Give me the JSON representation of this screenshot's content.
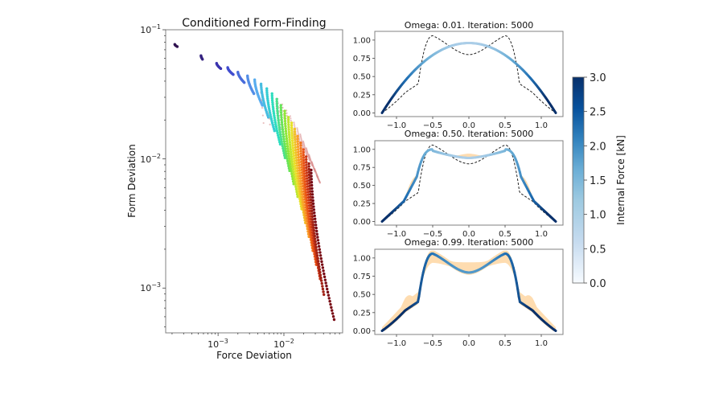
{
  "chart_data": [
    {
      "type": "scatter",
      "title": "Conditioned Form-Finding",
      "xlabel": "Force Deviation",
      "ylabel": "Form Deviation",
      "xscale": "log",
      "yscale": "log",
      "xlim": [
        0.00016,
        0.078
      ],
      "ylim": [
        0.00045,
        0.1
      ],
      "x_ticks": [
        {
          "value": 0.001,
          "base": "10",
          "exp": "−3"
        },
        {
          "value": 0.01,
          "base": "10",
          "exp": "−2"
        }
      ],
      "y_ticks": [
        {
          "value": 0.1,
          "base": "10",
          "exp": "−1"
        },
        {
          "value": 0.01,
          "base": "10",
          "exp": "−2"
        },
        {
          "value": 0.001,
          "base": "10",
          "exp": "−3"
        }
      ],
      "colormap": "jet-like (purple → blue → cyan → green → yellow → orange → dark red)",
      "strands": [
        {
          "start": [
            0.00022,
            0.077
          ],
          "end": [
            0.00024,
            0.074
          ]
        },
        {
          "start": [
            0.00055,
            0.063
          ],
          "end": [
            0.00058,
            0.059
          ]
        },
        {
          "start": [
            0.00095,
            0.055
          ],
          "end": [
            0.0011,
            0.05
          ]
        },
        {
          "start": [
            0.0014,
            0.051
          ],
          "end": [
            0.0017,
            0.045
          ]
        },
        {
          "start": [
            0.002,
            0.047
          ],
          "end": [
            0.0025,
            0.039
          ]
        },
        {
          "start": [
            0.0028,
            0.044
          ],
          "end": [
            0.0035,
            0.032
          ]
        },
        {
          "start": [
            0.0036,
            0.041
          ],
          "end": [
            0.0047,
            0.026
          ]
        },
        {
          "start": [
            0.0045,
            0.038
          ],
          "end": [
            0.0058,
            0.021
          ]
        },
        {
          "start": [
            0.0055,
            0.035
          ],
          "end": [
            0.0072,
            0.0165
          ]
        },
        {
          "start": [
            0.0066,
            0.032
          ],
          "end": [
            0.0088,
            0.013
          ]
        },
        {
          "start": [
            0.0078,
            0.029
          ],
          "end": [
            0.0104,
            0.0102
          ]
        },
        {
          "start": [
            0.009,
            0.026
          ],
          "end": [
            0.0122,
            0.0081
          ]
        },
        {
          "start": [
            0.0103,
            0.0235
          ],
          "end": [
            0.0141,
            0.0064
          ]
        },
        {
          "start": [
            0.0117,
            0.021
          ],
          "end": [
            0.0162,
            0.0051
          ]
        },
        {
          "start": [
            0.0131,
            0.019
          ],
          "end": [
            0.0186,
            0.0041
          ]
        },
        {
          "start": [
            0.0146,
            0.017
          ],
          "end": [
            0.0212,
            0.0032
          ]
        },
        {
          "start": [
            0.0162,
            0.015
          ],
          "end": [
            0.024,
            0.0025
          ]
        },
        {
          "start": [
            0.018,
            0.0133
          ],
          "end": [
            0.0275,
            0.00195
          ]
        },
        {
          "start": [
            0.0198,
            0.0118
          ],
          "end": [
            0.031,
            0.00152
          ]
        },
        {
          "start": [
            0.0218,
            0.0104
          ],
          "end": [
            0.0355,
            0.00118
          ]
        },
        {
          "start": [
            0.024,
            0.0092
          ],
          "end": [
            0.0405,
            0.00089
          ]
        },
        {
          "start": [
            0.026,
            0.0082
          ],
          "end": [
            0.058,
            0.00057
          ]
        }
      ]
    },
    {
      "type": "line",
      "title": "Omega: 0.01. Iteration: 5000",
      "xlim": [
        -1.3,
        1.3
      ],
      "ylim": [
        -0.05,
        1.12
      ],
      "x_ticks": [
        "−1.0",
        "−0.5",
        "0.0",
        "0.5",
        "1.0"
      ],
      "x_tick_values": [
        -1.0,
        -0.5,
        0.0,
        0.5,
        1.0
      ],
      "y_ticks": [
        "0.00",
        "0.25",
        "0.50",
        "0.75",
        "1.00"
      ],
      "y_tick_values": [
        0.0,
        0.25,
        0.5,
        0.75,
        1.0
      ],
      "target_curve_dashed": "double-hump target shape, peaks ≈1.06 at x=±0.5, dip 0.80 at x=0",
      "result_peak": 0.96,
      "shade_width": 0.0
    },
    {
      "type": "line",
      "title": "Omega: 0.50. Iteration: 5000",
      "xlim": [
        -1.3,
        1.3
      ],
      "ylim": [
        -0.05,
        1.12
      ],
      "x_ticks": [
        "−1.0",
        "−0.5",
        "0.0",
        "0.5",
        "1.0"
      ],
      "x_tick_values": [
        -1.0,
        -0.5,
        0.0,
        0.5,
        1.0
      ],
      "y_ticks": [
        "0.00",
        "0.25",
        "0.50",
        "0.75",
        "1.00"
      ],
      "y_tick_values": [
        0.0,
        0.25,
        0.5,
        0.75,
        1.0
      ],
      "result_blend": 0.5,
      "shade_width": 0.06
    },
    {
      "type": "line",
      "title": "Omega: 0.99. Iteration: 5000",
      "xlim": [
        -1.3,
        1.3
      ],
      "ylim": [
        -0.05,
        1.12
      ],
      "x_ticks": [
        "−1.0",
        "−0.5",
        "0.0",
        "0.5",
        "1.0"
      ],
      "x_tick_values": [
        -1.0,
        -0.5,
        0.0,
        0.5,
        1.0
      ],
      "y_ticks": [
        "0.00",
        "0.25",
        "0.50",
        "0.75",
        "1.00"
      ],
      "y_tick_values": [
        0.0,
        0.25,
        0.5,
        0.75,
        1.0
      ],
      "result_blend": 0.99,
      "shade_width": 0.1
    }
  ],
  "colorbar": {
    "label": "Internal Force [kN]",
    "range": [
      0.0,
      3.0
    ],
    "ticks": [
      "0.0",
      "0.5",
      "1.0",
      "1.5",
      "2.0",
      "2.5",
      "3.0"
    ],
    "tick_values": [
      0.0,
      0.5,
      1.0,
      1.5,
      2.0,
      2.5,
      3.0
    ],
    "color_low": "#f7fbff",
    "color_high": "#08306b"
  },
  "colors": {
    "shade": "#fdbf6f",
    "dashed": "#222222",
    "frame": "#808080"
  }
}
